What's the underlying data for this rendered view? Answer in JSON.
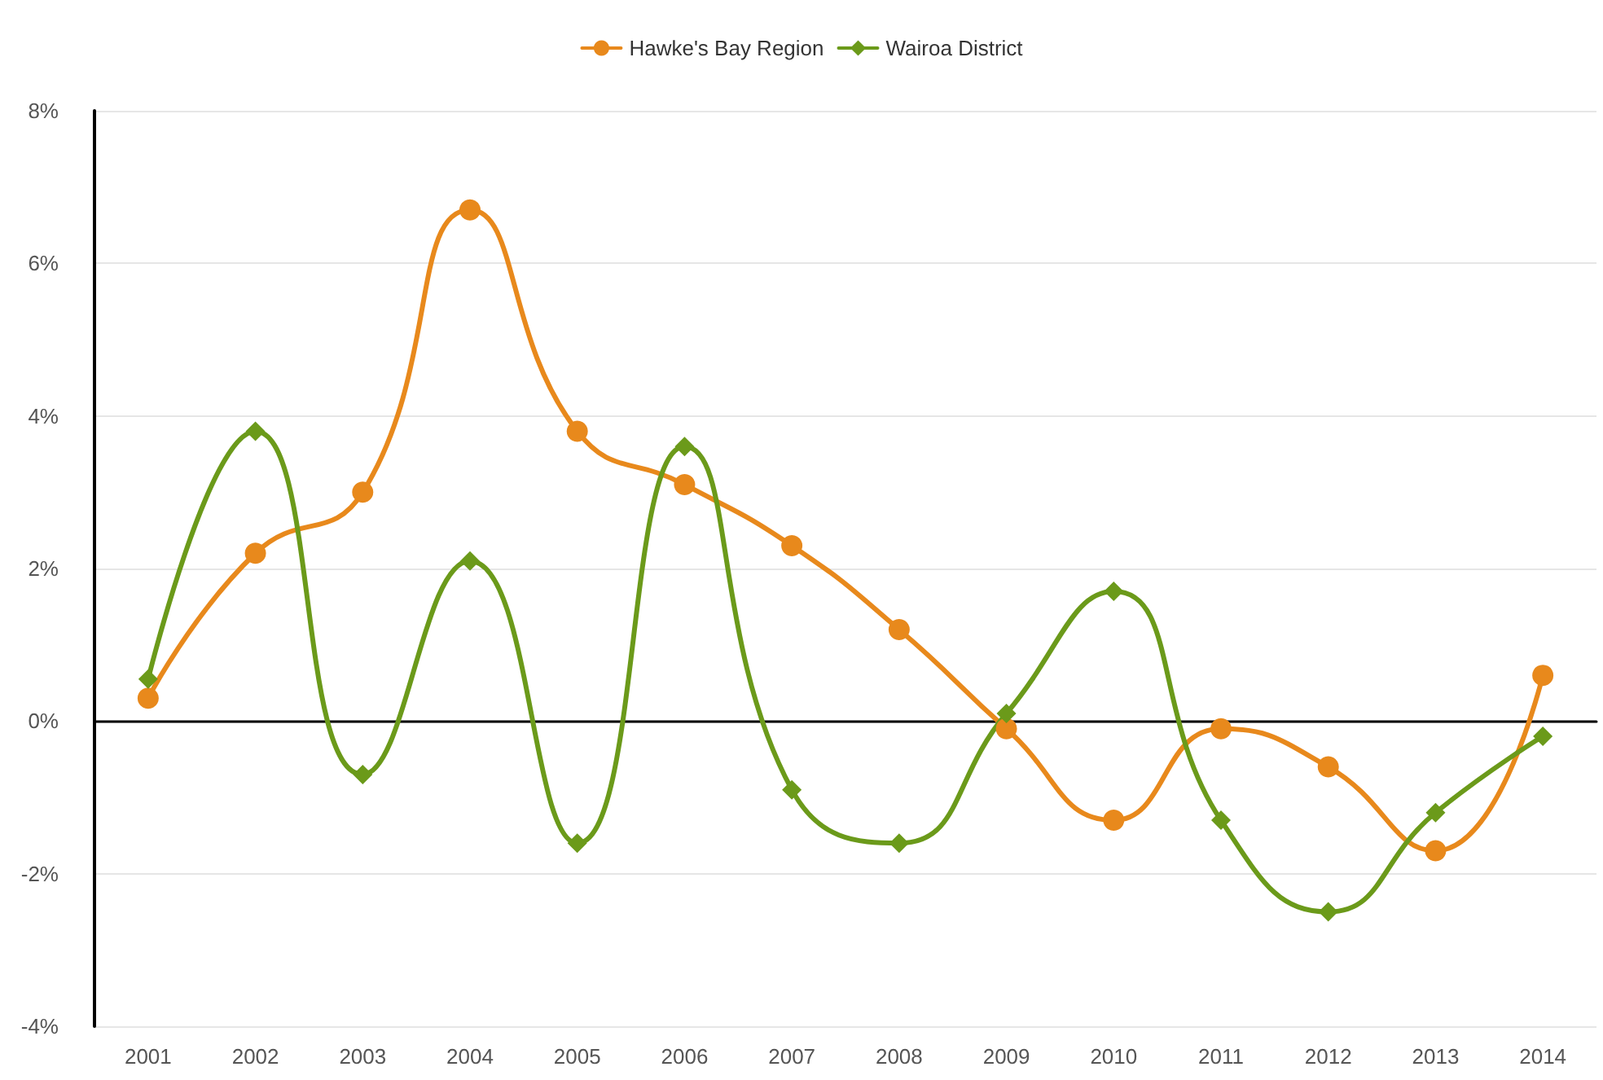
{
  "chart_data": {
    "type": "line",
    "categories": [
      "2001",
      "2002",
      "2003",
      "2004",
      "2005",
      "2006",
      "2007",
      "2008",
      "2009",
      "2010",
      "2011",
      "2012",
      "2013",
      "2014"
    ],
    "series": [
      {
        "name": "Hawke's Bay Region",
        "color": "#e8891c",
        "marker": "circle",
        "values": [
          0.3,
          2.2,
          3.0,
          6.7,
          3.8,
          3.1,
          2.3,
          1.2,
          -0.1,
          -1.3,
          -0.1,
          -0.6,
          -1.7,
          0.6
        ]
      },
      {
        "name": "Wairoa District",
        "color": "#6b9a1a",
        "marker": "diamond",
        "values": [
          0.55,
          3.8,
          -0.7,
          2.1,
          -1.6,
          3.6,
          -0.9,
          -1.6,
          0.1,
          1.7,
          -1.3,
          -2.5,
          -1.2,
          -0.2
        ]
      }
    ],
    "ylim": [
      -4,
      8
    ],
    "yticks": [
      {
        "value": -4,
        "label": "-4%"
      },
      {
        "value": -2,
        "label": "-2%"
      },
      {
        "value": 0,
        "label": "0%"
      },
      {
        "value": 2,
        "label": "2%"
      },
      {
        "value": 4,
        "label": "4%"
      },
      {
        "value": 6,
        "label": "6%"
      },
      {
        "value": 8,
        "label": "8%"
      }
    ],
    "grid": "y",
    "legend": "top"
  }
}
